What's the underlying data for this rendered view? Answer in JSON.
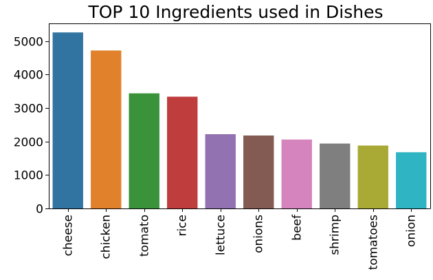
{
  "chart_data": {
    "type": "bar",
    "title": "TOP 10 Ingredients used in Dishes",
    "xlabel": "",
    "ylabel": "",
    "categories": [
      "cheese",
      "chicken",
      "tomato",
      "rice",
      "lettuce",
      "onions",
      "beef",
      "shrimp",
      "tomatoes",
      "onion"
    ],
    "values": [
      5260,
      4720,
      3440,
      3340,
      2220,
      2180,
      2060,
      1940,
      1880,
      1680
    ],
    "colors": [
      "#3274a1",
      "#e1812c",
      "#3a923a",
      "#c03d3e",
      "#9372b2",
      "#845b53",
      "#d684bd",
      "#7f7f7f",
      "#a9aa35",
      "#2eb4c2"
    ],
    "y_ticks": [
      "0",
      "1000",
      "2000",
      "3000",
      "4000",
      "5000"
    ],
    "ylim": [
      0,
      5530
    ],
    "grid": false,
    "legend": "none"
  }
}
